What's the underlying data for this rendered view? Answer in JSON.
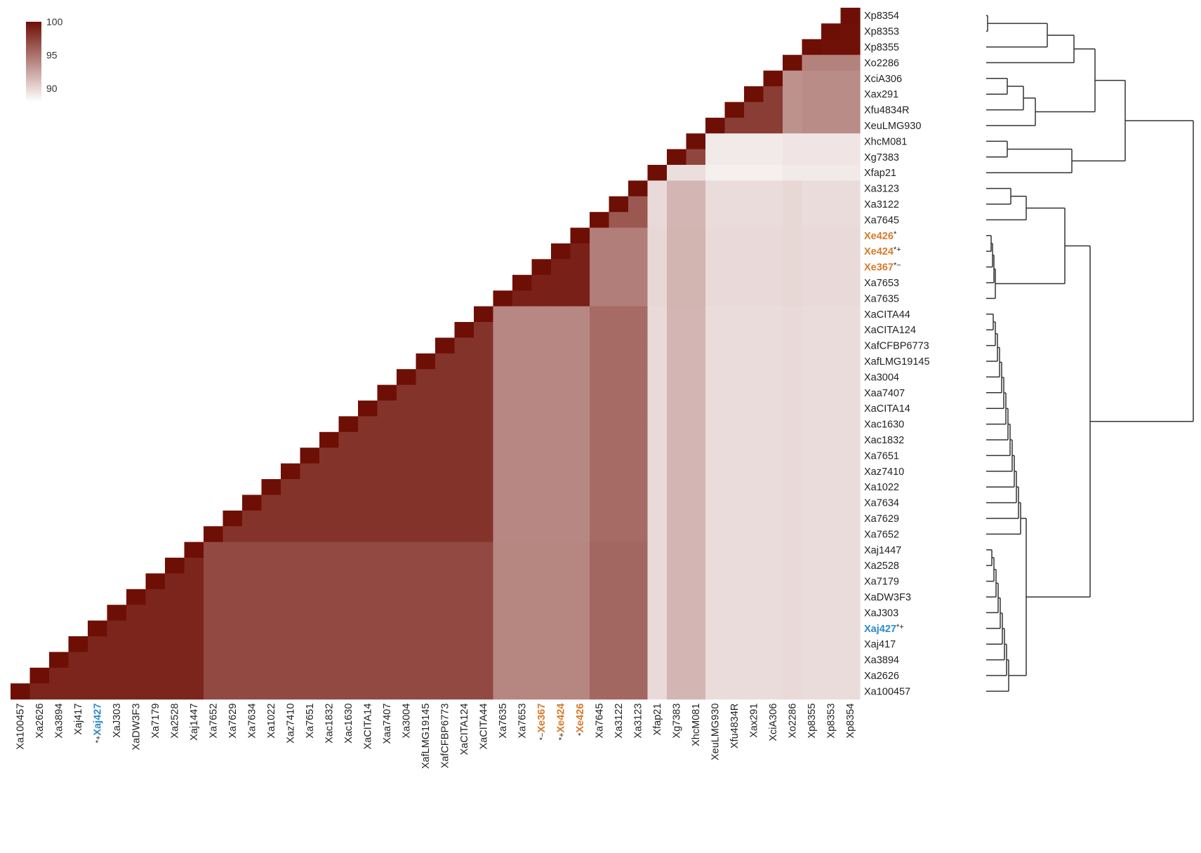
{
  "colors": {
    "high": "#6e0f05",
    "low": "#ffffff",
    "highlight_orange": "#d9792a",
    "highlight_blue": "#2c8bc6",
    "text": "#222222",
    "tree": "#333333"
  },
  "chart_data": {
    "type": "heatmap",
    "title": "",
    "xlabel": "",
    "ylabel": "",
    "layout": "lower-triangular",
    "color_scale": {
      "min": 88,
      "max": 100,
      "ticks": [
        100,
        95,
        90
      ]
    },
    "rows_top_to_bottom": [
      "Xp8354",
      "Xp8353",
      "Xp8355",
      "Xo2286",
      "XciA306",
      "Xax291",
      "Xfu4834R",
      "XeuLMG930",
      "XhcM081",
      "Xg7383",
      "Xfap21",
      "Xa3123",
      "Xa3122",
      "Xa7645",
      "Xe426",
      "Xe424",
      "Xe367",
      "Xa7653",
      "Xa7635",
      "XaCITA44",
      "XaCITA124",
      "XafCFBP6773",
      "XafLMG19145",
      "Xa3004",
      "Xaa7407",
      "XaCITA14",
      "Xac1630",
      "Xac1832",
      "Xa7651",
      "Xaz7410",
      "Xa1022",
      "Xa7634",
      "Xa7629",
      "Xa7652",
      "Xaj1447",
      "Xa2528",
      "Xa7179",
      "XaDW3F3",
      "XaJ303",
      "Xaj427",
      "Xaj417",
      "Xa3894",
      "Xa2626",
      "Xa100457"
    ],
    "row_annotations": {
      "Xe426": {
        "marks": "*",
        "color": "orange"
      },
      "Xe424": {
        "marks": "*+",
        "color": "orange"
      },
      "Xe367": {
        "marks": "*−",
        "color": "orange"
      },
      "Xaj427": {
        "marks": "*+",
        "color": "blue"
      }
    },
    "column_annotations": {
      "Xe367": {
        "marks": "*−",
        "color": "orange"
      },
      "Xe424": {
        "marks": "*+",
        "color": "orange"
      },
      "Xe426": {
        "marks": "*",
        "color": "orange"
      },
      "Xaj427": {
        "marks": "*+",
        "color": "blue"
      }
    },
    "groups": [
      {
        "members": [
          "Xp8354",
          "Xp8353",
          "Xp8355"
        ],
        "within": 99.9
      },
      {
        "members": [
          "Xo2286"
        ],
        "within": 100
      },
      {
        "members": [
          "XciA306",
          "Xax291",
          "Xfu4834R",
          "XeuLMG930"
        ],
        "within": 97.5
      },
      {
        "members": [
          "XhcM081",
          "Xg7383"
        ],
        "within": 97.0
      },
      {
        "members": [
          "Xfap21"
        ],
        "within": 100
      },
      {
        "members": [
          "Xa3123",
          "Xa3122",
          "Xa7645"
        ],
        "within": 96.0
      },
      {
        "members": [
          "Xe426",
          "Xe424",
          "Xe367",
          "Xa7653",
          "Xa7635"
        ],
        "within": 99.0
      },
      {
        "members": [
          "XaCITA44",
          "XaCITA124",
          "XafCFBP6773",
          "XafLMG19145",
          "Xa3004",
          "Xaa7407",
          "XaCITA14",
          "Xac1630",
          "Xac1832",
          "Xa7651",
          "Xaz7410",
          "Xa1022",
          "Xa7634",
          "Xa7629",
          "Xa7652"
        ],
        "within": 98.0
      },
      {
        "members": [
          "Xaj1447",
          "Xa2528",
          "Xa7179",
          "XaDW3F3",
          "XaJ303",
          "Xaj427",
          "Xaj417",
          "Xa3894",
          "Xa2626",
          "Xa100457"
        ],
        "within": 98.8
      }
    ],
    "between_groups": [
      {
        "a": 0,
        "b": 1,
        "value": 93.8
      },
      {
        "a": 0,
        "b": 2,
        "value": 93.3
      },
      {
        "a": 1,
        "b": 2,
        "value": 93.0
      },
      {
        "a": 0,
        "b": 3,
        "value": 89.0
      },
      {
        "a": 1,
        "b": 3,
        "value": 89.0
      },
      {
        "a": 2,
        "b": 3,
        "value": 88.8
      },
      {
        "a": 0,
        "b": 4,
        "value": 88.8
      },
      {
        "a": 1,
        "b": 4,
        "value": 88.8
      },
      {
        "a": 2,
        "b": 4,
        "value": 88.6
      },
      {
        "a": 3,
        "b": 4,
        "value": 89.3
      },
      {
        "a": 0,
        "b": 5,
        "value": 89.4
      },
      {
        "a": 1,
        "b": 5,
        "value": 89.6
      },
      {
        "a": 2,
        "b": 5,
        "value": 89.4
      },
      {
        "a": 3,
        "b": 5,
        "value": 91.2
      },
      {
        "a": 4,
        "b": 5,
        "value": 89.5
      },
      {
        "a": 0,
        "b": 6,
        "value": 89.5
      },
      {
        "a": 1,
        "b": 6,
        "value": 89.6
      },
      {
        "a": 2,
        "b": 6,
        "value": 89.5
      },
      {
        "a": 3,
        "b": 6,
        "value": 91.3
      },
      {
        "a": 4,
        "b": 6,
        "value": 89.6
      },
      {
        "a": 5,
        "b": 6,
        "value": 94.0
      },
      {
        "a": 0,
        "b": 7,
        "value": 89.4
      },
      {
        "a": 1,
        "b": 7,
        "value": 89.5
      },
      {
        "a": 2,
        "b": 7,
        "value": 89.4
      },
      {
        "a": 3,
        "b": 7,
        "value": 91.2
      },
      {
        "a": 4,
        "b": 7,
        "value": 89.5
      },
      {
        "a": 5,
        "b": 7,
        "value": 95.0
      },
      {
        "a": 6,
        "b": 7,
        "value": 93.5
      },
      {
        "a": 0,
        "b": 8,
        "value": 89.4
      },
      {
        "a": 1,
        "b": 8,
        "value": 89.5
      },
      {
        "a": 2,
        "b": 8,
        "value": 89.4
      },
      {
        "a": 3,
        "b": 8,
        "value": 91.2
      },
      {
        "a": 4,
        "b": 8,
        "value": 89.5
      },
      {
        "a": 5,
        "b": 8,
        "value": 95.2
      },
      {
        "a": 6,
        "b": 8,
        "value": 93.6
      },
      {
        "a": 7,
        "b": 8,
        "value": 96.8
      }
    ],
    "diagonal": 100
  }
}
